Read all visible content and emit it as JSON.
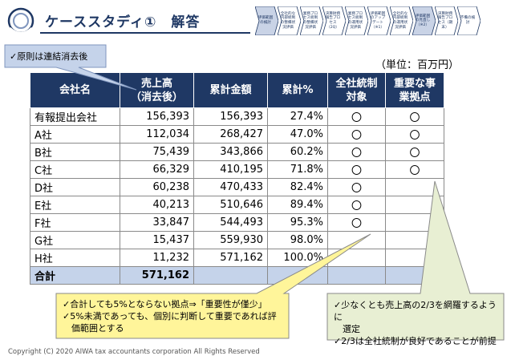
{
  "header": {
    "title": "ケーススタディ①　解答",
    "steps": [
      {
        "label": "評価範囲の検討",
        "active": true
      },
      {
        "label": "全社的な内部統制の整備状況評価",
        "active": false
      },
      {
        "label": "業務プロセス統制の整備状況評価",
        "active": false
      },
      {
        "label": "決算財務報告プロセス（2Q）",
        "active": false
      },
      {
        "label": "業務プロセス統制の運用状況評価",
        "active": false
      },
      {
        "label": "評価範囲のアップデート（※1）",
        "active": false
      },
      {
        "label": "全社的な内部統制の運用状況評価",
        "active": false
      },
      {
        "label": "評価範囲の見直し（※2）",
        "active": true
      },
      {
        "label": "決算財務報告プロセス（期末）",
        "active": false
      },
      {
        "label": "不備の検討",
        "active": false
      }
    ]
  },
  "unit_label": "（単位：百万円）",
  "table": {
    "headers": {
      "company": "会社名",
      "sales_1": "売上高",
      "sales_2": "（消去後）",
      "cumulative": "累計金額",
      "cum_pct": "累計%",
      "entity_1": "全社統制",
      "entity_2": "対象",
      "key_1": "重要な事",
      "key_2": "業拠点"
    },
    "rows": [
      {
        "company": "有報提出会社",
        "sales": "156,393",
        "cumulative": "156,393",
        "pct": "27.4%",
        "entity": "〇",
        "key": "〇"
      },
      {
        "company": "A社",
        "sales": "112,034",
        "cumulative": "268,427",
        "pct": "47.0%",
        "entity": "〇",
        "key": "〇"
      },
      {
        "company": "B社",
        "sales": "75,439",
        "cumulative": "343,866",
        "pct": "60.2%",
        "entity": "〇",
        "key": "〇"
      },
      {
        "company": "C社",
        "sales": "66,329",
        "cumulative": "410,195",
        "pct": "71.8%",
        "entity": "〇",
        "key": "〇"
      },
      {
        "company": "D社",
        "sales": "60,238",
        "cumulative": "470,433",
        "pct": "82.4%",
        "entity": "〇",
        "key": ""
      },
      {
        "company": "E社",
        "sales": "40,213",
        "cumulative": "510,646",
        "pct": "89.4%",
        "entity": "〇",
        "key": ""
      },
      {
        "company": "F社",
        "sales": "33,847",
        "cumulative": "544,493",
        "pct": "95.3%",
        "entity": "〇",
        "key": ""
      },
      {
        "company": "G社",
        "sales": "15,437",
        "cumulative": "559,930",
        "pct": "98.0%",
        "entity": "",
        "key": ""
      },
      {
        "company": "H社",
        "sales": "11,232",
        "cumulative": "571,162",
        "pct": "100.0%",
        "entity": "",
        "key": ""
      }
    ],
    "total": {
      "company": "合計",
      "sales": "571,162",
      "cumulative": "",
      "pct": "－",
      "entity": "",
      "key": ""
    }
  },
  "callouts": {
    "top": "✓原則は連結消去後",
    "bottom_left": [
      "✓合計しても5%とならない拠点⇒「重要性が僅少」",
      "✓5%未満であっても、個別に判断して重要であれば評",
      "　価範囲とする"
    ],
    "bottom_right": [
      "✓少なくとも売上高の2/3を網羅するように",
      "　選定",
      "✓2/3は全社統制が良好であることが前提"
    ]
  },
  "footer": "Copyright (C) 2020 AIWA tax accountants corporation All Rights Reserved",
  "colors": {
    "navy": "#1f3864",
    "total_row": "#c5d3ea",
    "callout_yellow": "#fff59a",
    "callout_green": "#e8efd3"
  }
}
